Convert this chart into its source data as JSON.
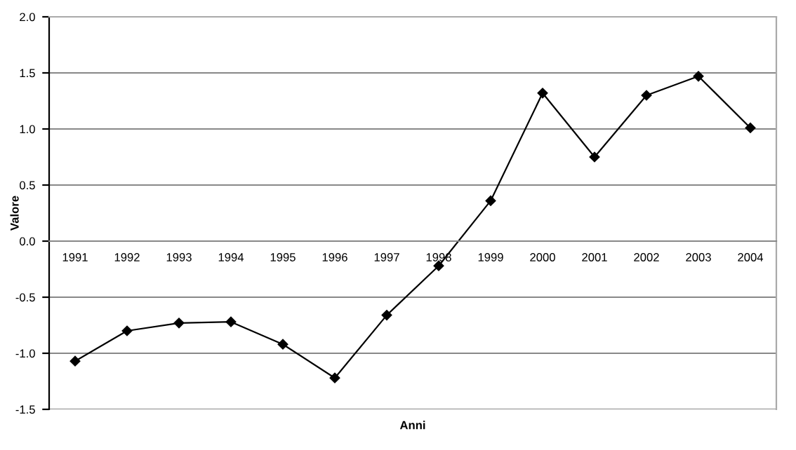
{
  "chart_data": {
    "type": "line",
    "xlabel": "Anni",
    "ylabel": "Valore",
    "categories": [
      "1991",
      "1992",
      "1993",
      "1994",
      "1995",
      "1996",
      "1997",
      "1998",
      "1999",
      "2000",
      "2001",
      "2002",
      "2003",
      "2004"
    ],
    "series": [
      {
        "color": "#000000",
        "values": [
          -1.07,
          -0.8,
          -0.73,
          -0.72,
          -0.92,
          -1.22,
          -0.66,
          -0.22,
          0.36,
          1.32,
          0.75,
          1.3,
          1.47,
          1.01
        ]
      }
    ],
    "ylim": [
      -1.5,
      2.0
    ],
    "yticks": [
      {
        "value": -1.5,
        "label": "-1.5"
      },
      {
        "value": -1.0,
        "label": "-1.0"
      },
      {
        "value": -0.5,
        "label": "-0.5"
      },
      {
        "value": 0.0,
        "label": "0.0"
      },
      {
        "value": 0.5,
        "label": "0.5"
      },
      {
        "value": 1.0,
        "label": "1.0"
      },
      {
        "value": 1.5,
        "label": "1.5"
      },
      {
        "value": 2.0,
        "label": "2.0"
      }
    ],
    "grid": "y",
    "marker": "diamond",
    "line_style": "solid"
  }
}
